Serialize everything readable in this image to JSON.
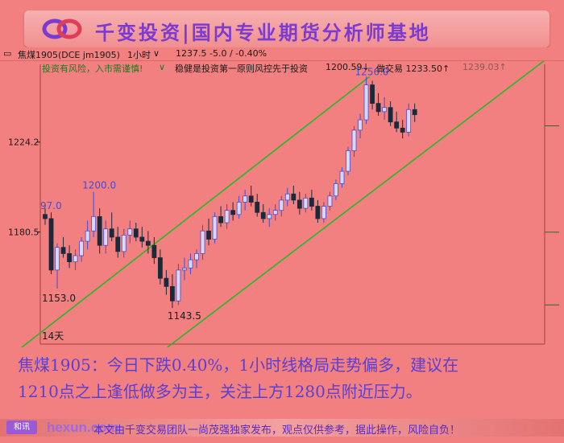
{
  "banner": {
    "title": "千变投资|国内专业期货分析师基地"
  },
  "toolbar": {
    "symbol": "焦煤1905(DCE jm1905)",
    "timeframe": "1小时",
    "price": "1237.5",
    "change": "-5.0 / -0.40%"
  },
  "infobar": {
    "warning": "投资有风险，入市需谨慎!",
    "slogan": "稳健是投资第一原则风控先于投资",
    "v1": "1200.59↓",
    "v2": "做交易 1233.50↑",
    "v3": "1239.03↑"
  },
  "chart_data": {
    "type": "candlestick",
    "instrument": "焦煤1905",
    "timeframe": "1小时",
    "y_ticks": [
      "1224.2",
      "1180.5"
    ],
    "annotations": {
      "left_edge_label": "97.0",
      "high_label_1": "1200.0",
      "low_label_1": "1153.0",
      "low_label_2": "1143.5",
      "high_label_2": "1256.0",
      "period_label": "14天"
    },
    "candles": [
      [
        1189,
        1192,
        1184,
        1187
      ],
      [
        1187,
        1190,
        1160,
        1162
      ],
      [
        1162,
        1175,
        1153,
        1173
      ],
      [
        1173,
        1178,
        1168,
        1170
      ],
      [
        1170,
        1174,
        1163,
        1166
      ],
      [
        1166,
        1172,
        1162,
        1169
      ],
      [
        1169,
        1178,
        1166,
        1176
      ],
      [
        1176,
        1186,
        1172,
        1181
      ],
      [
        1181,
        1200,
        1178,
        1188
      ],
      [
        1188,
        1192,
        1170,
        1174
      ],
      [
        1174,
        1186,
        1170,
        1182
      ],
      [
        1182,
        1190,
        1176,
        1178
      ],
      [
        1178,
        1183,
        1168,
        1171
      ],
      [
        1171,
        1182,
        1168,
        1179
      ],
      [
        1179,
        1186,
        1175,
        1182
      ],
      [
        1182,
        1185,
        1176,
        1178
      ],
      [
        1178,
        1183,
        1173,
        1176
      ],
      [
        1176,
        1181,
        1170,
        1174
      ],
      [
        1174,
        1178,
        1165,
        1168
      ],
      [
        1168,
        1172,
        1155,
        1158
      ],
      [
        1158,
        1162,
        1150,
        1154
      ],
      [
        1154,
        1160,
        1143.5,
        1147
      ],
      [
        1147,
        1165,
        1145,
        1162
      ],
      [
        1162,
        1168,
        1157,
        1163
      ],
      [
        1163,
        1170,
        1160,
        1167
      ],
      [
        1167,
        1172,
        1163,
        1170
      ],
      [
        1170,
        1184,
        1167,
        1181
      ],
      [
        1181,
        1187,
        1174,
        1177
      ],
      [
        1177,
        1190,
        1175,
        1188
      ],
      [
        1188,
        1193,
        1183,
        1185
      ],
      [
        1185,
        1194,
        1182,
        1191
      ],
      [
        1191,
        1195,
        1186,
        1189
      ],
      [
        1189,
        1198,
        1187,
        1195
      ],
      [
        1195,
        1201,
        1191,
        1198
      ],
      [
        1198,
        1203,
        1193,
        1195
      ],
      [
        1195,
        1199,
        1188,
        1190
      ],
      [
        1190,
        1194,
        1185,
        1187
      ],
      [
        1187,
        1192,
        1183,
        1189
      ],
      [
        1189,
        1194,
        1186,
        1191
      ],
      [
        1191,
        1198,
        1188,
        1196
      ],
      [
        1196,
        1202,
        1193,
        1199
      ],
      [
        1199,
        1203,
        1194,
        1196
      ],
      [
        1196,
        1200,
        1189,
        1192
      ],
      [
        1192,
        1199,
        1190,
        1197
      ],
      [
        1197,
        1201,
        1191,
        1193
      ],
      [
        1193,
        1196,
        1185,
        1187
      ],
      [
        1187,
        1195,
        1185,
        1193
      ],
      [
        1193,
        1200,
        1191,
        1198
      ],
      [
        1198,
        1206,
        1196,
        1204
      ],
      [
        1204,
        1212,
        1202,
        1210
      ],
      [
        1210,
        1222,
        1208,
        1220
      ],
      [
        1220,
        1232,
        1217,
        1230
      ],
      [
        1230,
        1238,
        1226,
        1235
      ],
      [
        1235,
        1256,
        1233,
        1252
      ],
      [
        1252,
        1254,
        1240,
        1243
      ],
      [
        1243,
        1248,
        1237,
        1239
      ],
      [
        1239,
        1246,
        1235,
        1241
      ],
      [
        1241,
        1244,
        1232,
        1234
      ],
      [
        1234,
        1239,
        1229,
        1231
      ],
      [
        1231,
        1235,
        1226,
        1229
      ],
      [
        1229,
        1243,
        1227,
        1240
      ],
      [
        1240,
        1243,
        1234,
        1237.5
      ]
    ],
    "channel": {
      "upper_start": [
        1125,
        0
      ],
      "upper_end": [
        1256,
        53
      ],
      "lower_start": [
        1125,
        24
      ],
      "lower_end": [
        1256,
        85
      ]
    }
  },
  "analysis": {
    "line1": "焦煤1905：今日下跌0.40%，1小时线格局走势偏多，建议在",
    "line2": "1210点之上逢低做多为主，关注上方1280点附近压力。"
  },
  "footer": {
    "logo": "和讯",
    "hexun": "hexun.com",
    "note": "本文由千变交易团队一尚茂强独家发布，观点仅供参考，据此操作，风险自负！"
  }
}
